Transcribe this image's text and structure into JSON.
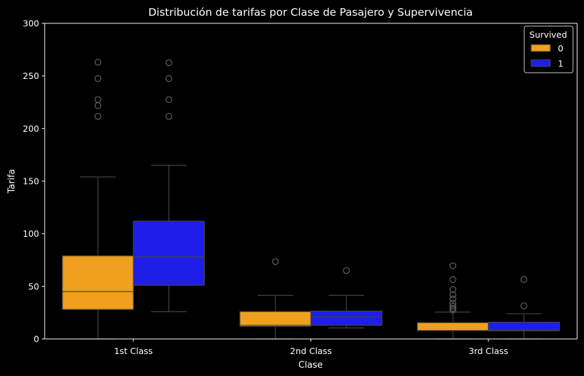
{
  "chart_data": {
    "type": "box",
    "title": "Distribución de tarifas por Clase de Pasajero y Supervivencia",
    "xlabel": "Clase",
    "ylabel": "Tarifa",
    "categories": [
      "1st Class",
      "2nd Class",
      "3rd Class"
    ],
    "ylim": [
      0,
      300
    ],
    "yticks": [
      0,
      50,
      100,
      150,
      200,
      250,
      300
    ],
    "grid": false,
    "legend": {
      "title": "Survived",
      "position": "top-right"
    },
    "series": [
      {
        "name": "0",
        "color": "#f0a01e",
        "boxes": [
          {
            "category": "1st Class",
            "whisker_low": 0,
            "q1": 28,
            "median": 45,
            "q3": 79,
            "whisker_high": 154,
            "outliers": [
              211.5,
              221.8,
              227.5,
              247.5,
              263
            ]
          },
          {
            "category": "2nd Class",
            "whisker_low": 0,
            "q1": 12,
            "median": 13,
            "q3": 26,
            "whisker_high": 41.5,
            "outliers": [
              73.5
            ]
          },
          {
            "category": "3rd Class",
            "whisker_low": 0,
            "q1": 7.8,
            "median": 8.05,
            "q3": 15.5,
            "whisker_high": 25.5,
            "outliers": [
              27.5,
              29,
              31,
              34,
              38,
              42,
              47,
              56.5,
              69.5
            ]
          }
        ]
      },
      {
        "name": "1",
        "color": "#1e1ee6",
        "boxes": [
          {
            "category": "1st Class",
            "whisker_low": 26,
            "q1": 51,
            "median": 78,
            "q3": 112,
            "whisker_high": 165,
            "outliers": [
              211.5,
              227.5,
              247.5,
              262.5
            ]
          },
          {
            "category": "2nd Class",
            "whisker_low": 10.5,
            "q1": 13,
            "median": 21,
            "q3": 26.5,
            "whisker_high": 41.5,
            "outliers": [
              65
            ]
          },
          {
            "category": "3rd Class",
            "whisker_low": 0,
            "q1": 7.8,
            "median": 8.5,
            "q3": 15.9,
            "whisker_high": 24,
            "outliers": [
              31.5,
              56.5
            ]
          }
        ]
      }
    ]
  }
}
